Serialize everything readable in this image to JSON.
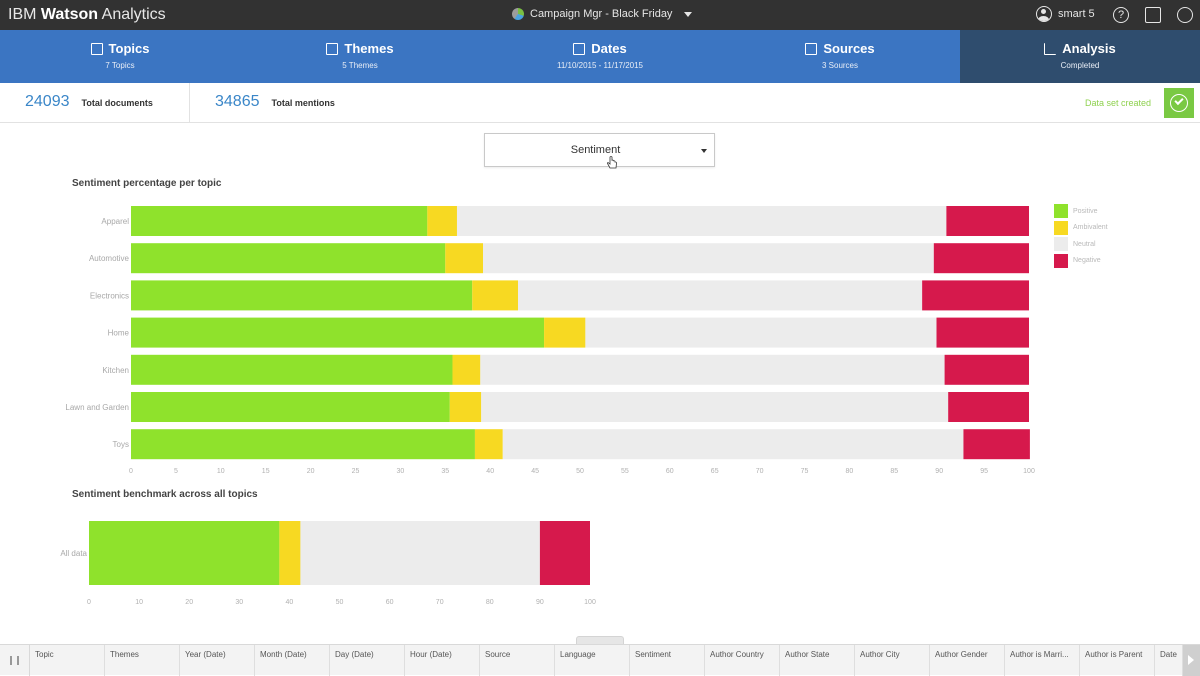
{
  "app": {
    "brand_light": "IBM ",
    "brand_bold": "Watson",
    "brand_rest": " Analytics",
    "project_name": "Campaign Mgr - Black Friday",
    "user_name": "smart 5"
  },
  "steps": [
    {
      "label": "Topics",
      "sub": "7 Topics",
      "active": false
    },
    {
      "label": "Themes",
      "sub": "5 Themes",
      "active": false
    },
    {
      "label": "Dates",
      "sub": "11/10/2015 - 11/17/2015",
      "active": false
    },
    {
      "label": "Sources",
      "sub": "3 Sources",
      "active": false
    },
    {
      "label": "Analysis",
      "sub": "Completed",
      "active": true
    }
  ],
  "stats": {
    "total_documents_value": "24093",
    "total_documents_label": "Total documents",
    "total_mentions_value": "34865",
    "total_mentions_label": "Total mentions",
    "dataset_status": "Data set created"
  },
  "dropdown": {
    "selected": "Sentiment"
  },
  "colors": {
    "positive": "#8fe22c",
    "ambivalent": "#f7d922",
    "neutral": "#ececec",
    "negative": "#d6194c",
    "accent": "#3b75c2"
  },
  "chart_data": [
    {
      "type": "bar",
      "stacked": true,
      "orientation": "horizontal",
      "title": "Sentiment percentage per topic",
      "categories": [
        "Apparel",
        "Automotive",
        "Electronics",
        "Home",
        "Kitchen",
        "Lawn and Garden",
        "Toys"
      ],
      "series": [
        {
          "name": "Positive",
          "values": [
            33,
            35,
            38,
            46,
            35.8,
            35.5,
            38.3
          ]
        },
        {
          "name": "Ambivalent",
          "values": [
            3.3,
            4.2,
            5.1,
            4.6,
            3.1,
            3.5,
            3.1
          ]
        },
        {
          "name": "Neutral",
          "values": [
            54.5,
            50.2,
            45,
            39.1,
            51.7,
            52,
            51.3
          ]
        },
        {
          "name": "Negative",
          "values": [
            9.2,
            10.6,
            11.9,
            10.3,
            9.4,
            9,
            7.4
          ]
        }
      ],
      "xlim": [
        0,
        100
      ],
      "xticks": [
        0,
        5,
        10,
        15,
        20,
        25,
        30,
        35,
        40,
        45,
        50,
        55,
        60,
        65,
        70,
        75,
        80,
        85,
        90,
        95,
        100
      ],
      "legend": "right"
    },
    {
      "type": "bar",
      "stacked": true,
      "orientation": "horizontal",
      "title": "Sentiment benchmark across all topics",
      "categories": [
        "All data"
      ],
      "series": [
        {
          "name": "Positive",
          "values": [
            38
          ]
        },
        {
          "name": "Ambivalent",
          "values": [
            4.2
          ]
        },
        {
          "name": "Neutral",
          "values": [
            47.8
          ]
        },
        {
          "name": "Negative",
          "values": [
            10
          ]
        }
      ],
      "xlim": [
        0,
        100
      ],
      "xticks": [
        0,
        10,
        20,
        30,
        40,
        50,
        60,
        70,
        80,
        90,
        100
      ]
    }
  ],
  "table_columns": [
    "Topic",
    "Themes",
    "Year (Date)",
    "Month (Date)",
    "Day (Date)",
    "Hour (Date)",
    "Source",
    "Language",
    "Sentiment",
    "Author Country",
    "Author State",
    "Author City",
    "Author Gender",
    "Author is Marri...",
    "Author is Parent",
    "Date"
  ]
}
